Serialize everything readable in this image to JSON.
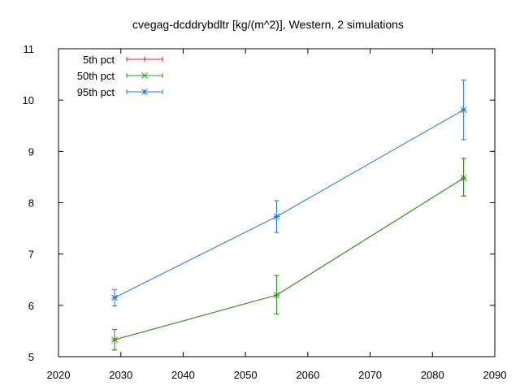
{
  "chart_data": {
    "type": "line",
    "title": "cvegag-dcddrybdltr [kg/(m^2)], Western, 2 simulations",
    "xlabel": "",
    "ylabel": "",
    "xlim": [
      2020,
      2090
    ],
    "ylim": [
      5,
      11
    ],
    "xticks": [
      2020,
      2030,
      2040,
      2050,
      2060,
      2070,
      2080,
      2090
    ],
    "yticks": [
      5,
      6,
      7,
      8,
      9,
      10,
      11
    ],
    "x": [
      2029,
      2055,
      2085
    ],
    "grid": false,
    "legend_position": "top-left",
    "series": [
      {
        "name": "5th pct",
        "color": "#e41a1c",
        "marker": "plus",
        "y": [
          5.33,
          6.2,
          8.48
        ],
        "err_low": [
          5.13,
          5.83,
          8.13
        ],
        "err_high": [
          5.53,
          6.58,
          8.86
        ]
      },
      {
        "name": "50th pct",
        "color": "#1ca01c",
        "marker": "x",
        "y": [
          5.33,
          6.2,
          8.48
        ],
        "err_low": [
          5.13,
          5.83,
          8.13
        ],
        "err_high": [
          5.53,
          6.58,
          8.86
        ]
      },
      {
        "name": "95th pct",
        "color": "#1f78d4",
        "marker": "star",
        "y": [
          6.15,
          7.73,
          9.81
        ],
        "err_low": [
          5.99,
          7.42,
          9.23
        ],
        "err_high": [
          6.31,
          8.04,
          10.39
        ]
      }
    ]
  }
}
